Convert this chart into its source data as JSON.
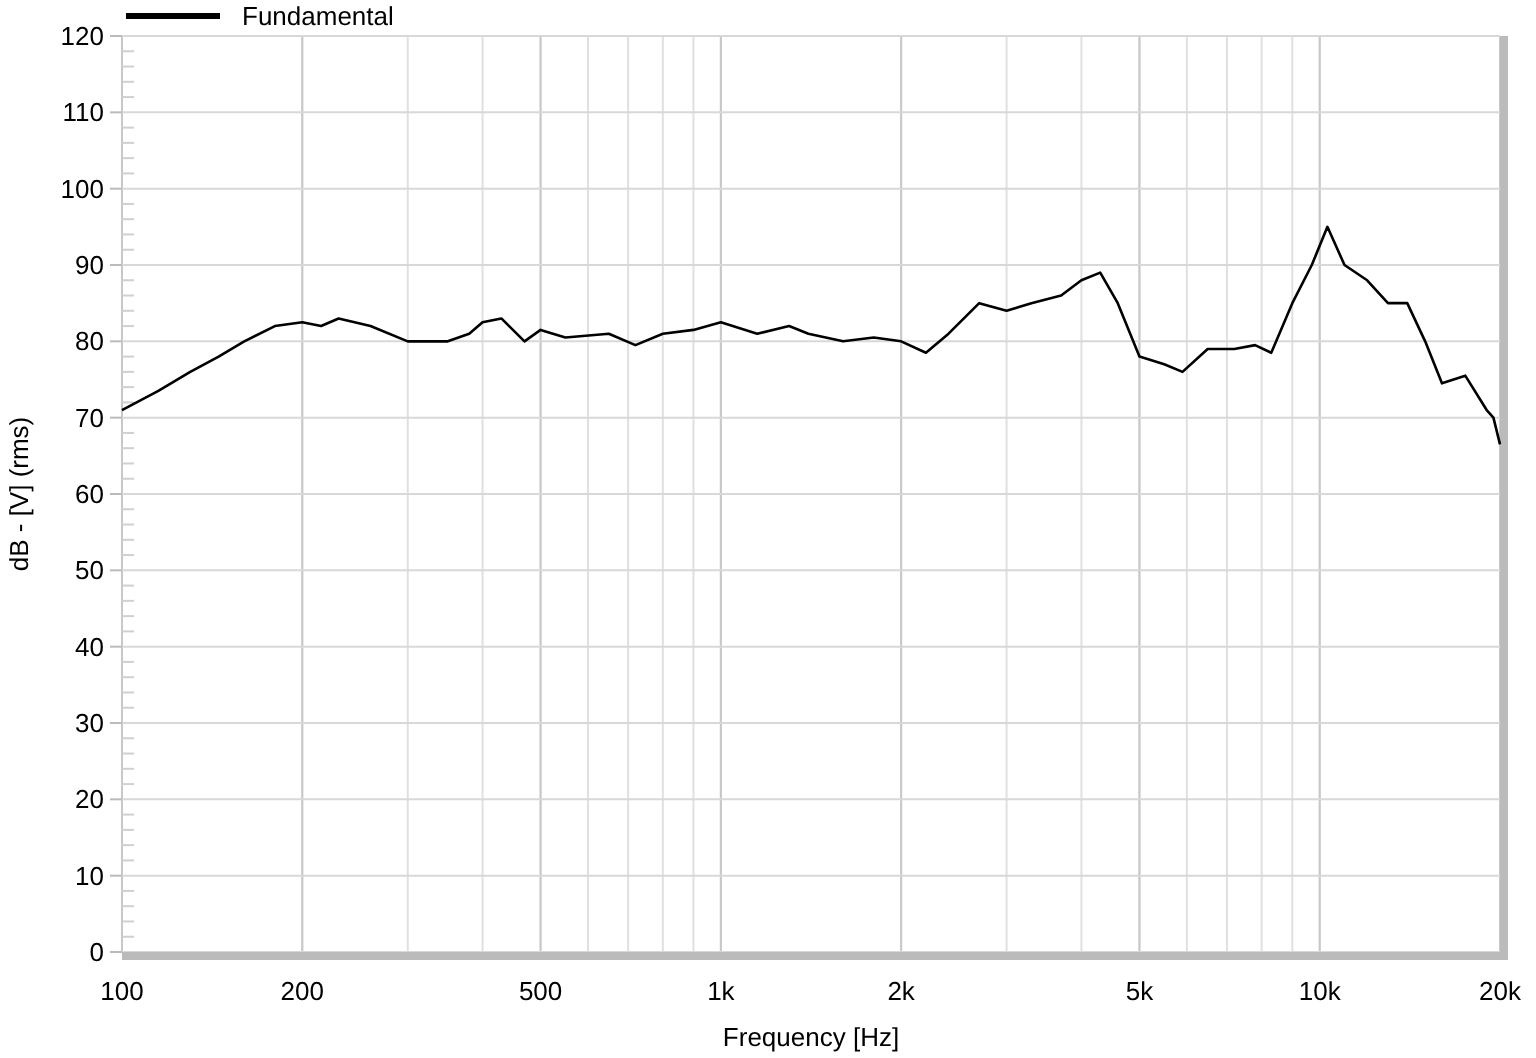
{
  "chart_data": {
    "type": "line",
    "xlabel": "Frequency [Hz]",
    "ylabel": "dB - [V] (rms)",
    "log": "x",
    "grid": true,
    "legend": "top left",
    "line_style": "solid",
    "xlim": [
      100,
      20000
    ],
    "xticks": [
      {
        "value": 100,
        "label": "100"
      },
      {
        "value": 200,
        "label": "200"
      },
      {
        "value": 500,
        "label": "500"
      },
      {
        "value": 1000,
        "label": "1k"
      },
      {
        "value": 2000,
        "label": "2k"
      },
      {
        "value": 5000,
        "label": "5k"
      },
      {
        "value": 10000,
        "label": "10k"
      },
      {
        "value": 20000,
        "label": "20k"
      }
    ],
    "ylim": [
      0,
      120
    ],
    "yticks": [
      0,
      10,
      20,
      30,
      40,
      50,
      60,
      70,
      80,
      90,
      100,
      110,
      120
    ],
    "series": [
      {
        "name": "Fundamental",
        "color": "#000000",
        "x": [
          100,
          115,
          130,
          145,
          160,
          180,
          200,
          215,
          230,
          260,
          300,
          350,
          380,
          400,
          430,
          470,
          500,
          550,
          650,
          720,
          800,
          900,
          1000,
          1150,
          1300,
          1400,
          1600,
          1800,
          2000,
          2200,
          2400,
          2700,
          3000,
          3300,
          3700,
          4000,
          4300,
          4600,
          5000,
          5500,
          5900,
          6500,
          7200,
          7800,
          8300,
          9000,
          9700,
          10300,
          11000,
          12000,
          13000,
          14000,
          15000,
          16000,
          17500,
          19000,
          19500,
          20000
        ],
        "values": [
          71,
          73.5,
          76,
          78,
          80,
          82,
          82.5,
          82,
          83,
          82,
          80,
          80,
          81,
          82.5,
          83,
          80,
          81.5,
          80.5,
          81,
          79.5,
          81,
          81.5,
          82.5,
          81,
          82,
          81,
          80,
          80.5,
          80,
          78.5,
          81,
          85,
          84,
          85,
          86,
          88,
          89,
          85,
          78,
          77,
          76,
          79,
          79,
          79.5,
          78.5,
          85,
          90,
          95,
          90,
          88,
          85,
          85,
          80,
          74.5,
          75.5,
          71,
          70,
          66.5
        ]
      }
    ]
  }
}
